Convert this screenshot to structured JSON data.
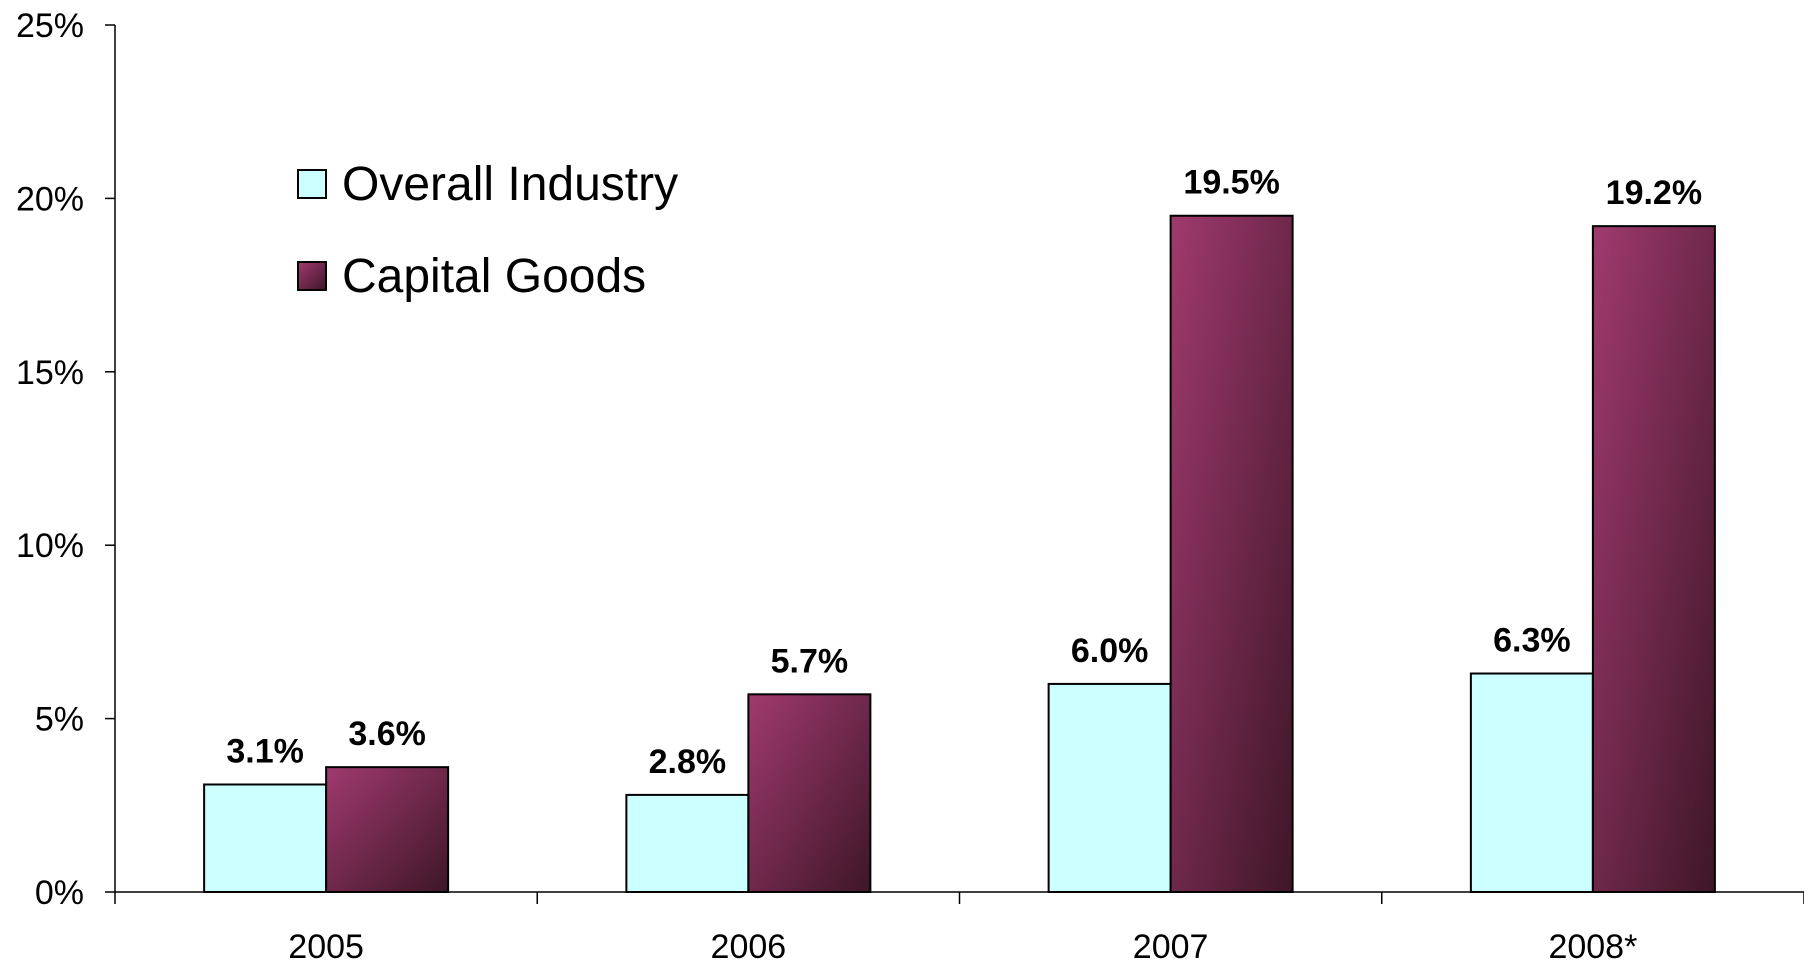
{
  "chart_data": {
    "type": "bar",
    "categories": [
      "2005",
      "2006",
      "2007",
      "2008*"
    ],
    "series": [
      {
        "name": "Overall Industry",
        "values": [
          3.1,
          2.8,
          6.0,
          6.3
        ],
        "labels": [
          "3.1%",
          "2.8%",
          "6.0%",
          "6.3%"
        ]
      },
      {
        "name": "Capital Goods",
        "values": [
          3.6,
          5.7,
          19.5,
          19.2
        ],
        "labels": [
          "3.6%",
          "5.7%",
          "19.5%",
          "19.2%"
        ]
      }
    ],
    "title": "",
    "xlabel": "",
    "ylabel": "",
    "ylim": [
      0,
      25
    ],
    "yticks": [
      0,
      5,
      10,
      15,
      20,
      25
    ],
    "ytick_labels": [
      "0%",
      "5%",
      "10%",
      "15%",
      "20%",
      "25%"
    ],
    "grid": false,
    "legend_position": "top-left",
    "colors": {
      "overall_industry": "#ccffff",
      "capital_goods_light": "#a03a6e",
      "capital_goods_dark": "#3e1628",
      "bar_outline": "#000000"
    }
  }
}
